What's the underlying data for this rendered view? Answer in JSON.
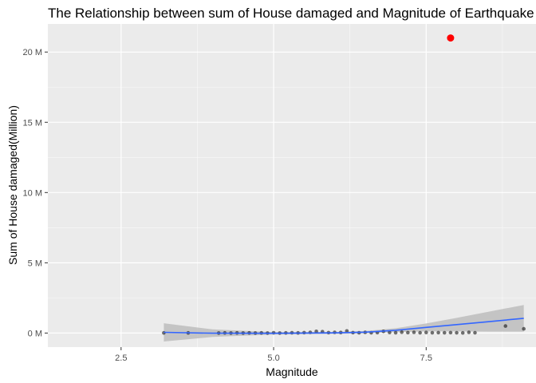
{
  "chart_data": {
    "type": "scatter",
    "title": "The Relationship between sum of House damaged and Magnitude of Earthquake",
    "xlabel": "Magnitude",
    "ylabel": "Sum of House damaged(Million)",
    "xlim": [
      1.3,
      9.3
    ],
    "ylim": [
      -1.0,
      22.0
    ],
    "x_ticks": [
      2.5,
      5.0,
      7.5
    ],
    "x_tick_labels": [
      "2.5",
      "5.0",
      "7.5"
    ],
    "y_ticks": [
      0,
      5,
      10,
      15,
      20
    ],
    "y_tick_labels": [
      "0 M",
      "5 M",
      "10 M",
      "15 M",
      "20 M"
    ],
    "grid": true,
    "legend": "none",
    "points": [
      {
        "x": 3.2,
        "y": 0.01
      },
      {
        "x": 3.6,
        "y": 0.01
      },
      {
        "x": 4.1,
        "y": 0.0
      },
      {
        "x": 4.2,
        "y": 0.01
      },
      {
        "x": 4.3,
        "y": 0.0
      },
      {
        "x": 4.4,
        "y": 0.01
      },
      {
        "x": 4.5,
        "y": 0.0
      },
      {
        "x": 4.6,
        "y": 0.01
      },
      {
        "x": 4.7,
        "y": 0.0
      },
      {
        "x": 4.8,
        "y": 0.01
      },
      {
        "x": 4.9,
        "y": 0.0
      },
      {
        "x": 5.0,
        "y": 0.02
      },
      {
        "x": 5.1,
        "y": 0.0
      },
      {
        "x": 5.2,
        "y": 0.01
      },
      {
        "x": 5.3,
        "y": 0.02
      },
      {
        "x": 5.4,
        "y": 0.01
      },
      {
        "x": 5.5,
        "y": 0.03
      },
      {
        "x": 5.6,
        "y": 0.05
      },
      {
        "x": 5.7,
        "y": 0.12
      },
      {
        "x": 5.8,
        "y": 0.1
      },
      {
        "x": 5.9,
        "y": 0.03
      },
      {
        "x": 6.0,
        "y": 0.05
      },
      {
        "x": 6.1,
        "y": 0.04
      },
      {
        "x": 6.2,
        "y": 0.15
      },
      {
        "x": 6.3,
        "y": 0.03
      },
      {
        "x": 6.4,
        "y": 0.02
      },
      {
        "x": 6.5,
        "y": 0.05
      },
      {
        "x": 6.6,
        "y": 0.02
      },
      {
        "x": 6.7,
        "y": 0.03
      },
      {
        "x": 6.8,
        "y": 0.12
      },
      {
        "x": 6.9,
        "y": 0.04
      },
      {
        "x": 7.0,
        "y": 0.02
      },
      {
        "x": 7.1,
        "y": 0.06
      },
      {
        "x": 7.2,
        "y": 0.03
      },
      {
        "x": 7.3,
        "y": 0.05
      },
      {
        "x": 7.4,
        "y": 0.02
      },
      {
        "x": 7.5,
        "y": 0.04
      },
      {
        "x": 7.6,
        "y": 0.02
      },
      {
        "x": 7.7,
        "y": 0.03
      },
      {
        "x": 7.8,
        "y": 0.02
      },
      {
        "x": 7.9,
        "y": 0.03
      },
      {
        "x": 8.0,
        "y": 0.02
      },
      {
        "x": 8.1,
        "y": 0.01
      },
      {
        "x": 8.2,
        "y": 0.05
      },
      {
        "x": 8.3,
        "y": 0.02
      },
      {
        "x": 8.8,
        "y": 0.5
      },
      {
        "x": 9.1,
        "y": 0.3
      }
    ],
    "highlight_points": [
      {
        "x": 7.9,
        "y": 21.0
      }
    ],
    "smooth_line": [
      {
        "x": 3.2,
        "y": 0.05
      },
      {
        "x": 4.0,
        "y": -0.01
      },
      {
        "x": 5.0,
        "y": -0.02
      },
      {
        "x": 6.0,
        "y": 0.01
      },
      {
        "x": 6.5,
        "y": 0.06
      },
      {
        "x": 7.0,
        "y": 0.2
      },
      {
        "x": 7.5,
        "y": 0.4
      },
      {
        "x": 8.0,
        "y": 0.6
      },
      {
        "x": 8.5,
        "y": 0.8
      },
      {
        "x": 9.1,
        "y": 1.05
      }
    ],
    "confidence_band": [
      {
        "x": 3.2,
        "lo": -0.6,
        "hi": 0.7
      },
      {
        "x": 4.0,
        "lo": -0.28,
        "hi": 0.26
      },
      {
        "x": 5.0,
        "lo": -0.1,
        "hi": 0.06
      },
      {
        "x": 6.0,
        "lo": -0.06,
        "hi": 0.08
      },
      {
        "x": 6.5,
        "lo": -0.02,
        "hi": 0.14
      },
      {
        "x": 7.0,
        "lo": 0.06,
        "hi": 0.34
      },
      {
        "x": 7.5,
        "lo": 0.12,
        "hi": 0.68
      },
      {
        "x": 8.0,
        "lo": 0.12,
        "hi": 1.08
      },
      {
        "x": 8.5,
        "lo": 0.1,
        "hi": 1.5
      },
      {
        "x": 9.1,
        "lo": 0.1,
        "hi": 2.0
      }
    ],
    "colors": {
      "panel_background": "#ebebeb",
      "grid_major": "#ffffff",
      "points": "#000000",
      "highlight": "#ff0000",
      "smooth_line": "#3366ff",
      "band": "#bdbdbd"
    }
  }
}
